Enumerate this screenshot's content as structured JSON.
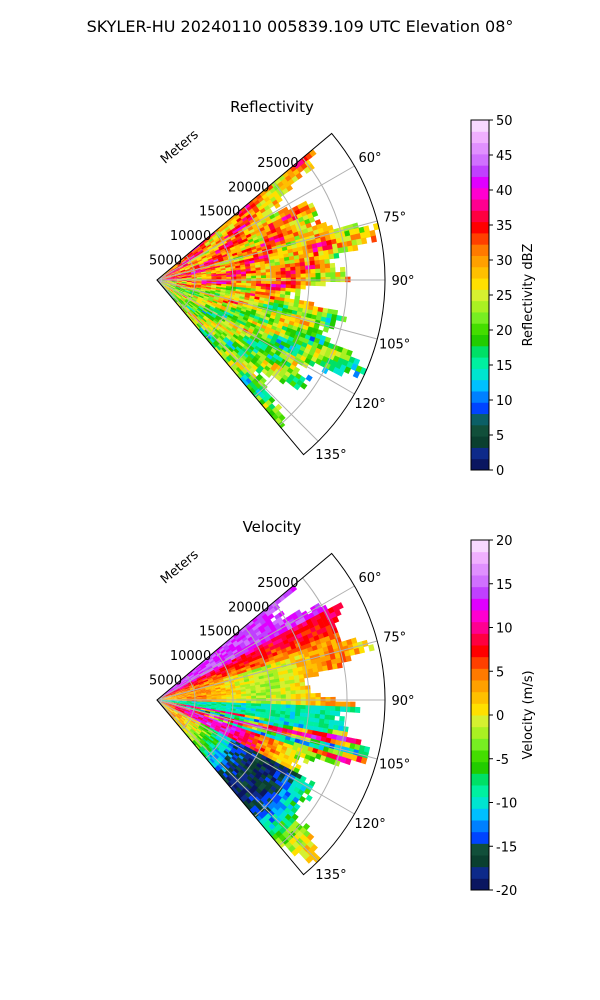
{
  "figure": {
    "suptitle": "SKYLER-HU  20240110  005839.109 UTC Elevation 08°"
  },
  "chart_data": [
    {
      "type": "heatmap",
      "projection": "polar-sector",
      "title": "Reflectivity",
      "radial_axis_label": "Meters",
      "radial_ticks": [
        5000,
        10000,
        15000,
        20000,
        25000
      ],
      "radial_max": 30000,
      "azimuth_range_deg": [
        50,
        140
      ],
      "azimuth_ticks": [
        "60°",
        "75°",
        "90°",
        "105°",
        "120°",
        "135°"
      ],
      "grid": true,
      "colorbar": {
        "label": "Reflectivity dBZ",
        "range": [
          0,
          50
        ],
        "ticks": [
          0,
          5,
          10,
          15,
          20,
          25,
          30,
          35,
          40,
          45,
          50
        ],
        "colors": [
          "#0a1660",
          "#0d2a8a",
          "#0a3f2f",
          "#114f3a",
          "#0b5f66",
          "#0044ff",
          "#0080ff",
          "#00c0ff",
          "#00e5d0",
          "#00f0a0",
          "#00e066",
          "#22cc00",
          "#44dd00",
          "#77ee22",
          "#aaf022",
          "#d6f030",
          "#ffe000",
          "#ffc000",
          "#ffa000",
          "#ff7a00",
          "#ff4000",
          "#ff0000",
          "#ff0040",
          "#ff0090",
          "#ff00d0",
          "#e000ff",
          "#c040ff",
          "#d070ff",
          "#e090ff",
          "#f0b0ff",
          "#f8d8ff"
        ]
      },
      "field": "reflectivity"
    },
    {
      "type": "heatmap",
      "projection": "polar-sector",
      "title": "Velocity",
      "radial_axis_label": "Meters",
      "radial_ticks": [
        5000,
        10000,
        15000,
        20000,
        25000
      ],
      "radial_max": 30000,
      "azimuth_range_deg": [
        50,
        140
      ],
      "azimuth_ticks": [
        "60°",
        "75°",
        "90°",
        "105°",
        "120°",
        "135°"
      ],
      "grid": true,
      "colorbar": {
        "label": "Velocity (m/s)",
        "range": [
          -20,
          20
        ],
        "ticks": [
          -20,
          -15,
          -10,
          -5,
          0,
          5,
          10,
          15,
          20
        ],
        "colors": [
          "#0a1660",
          "#0d2a8a",
          "#0a3f2f",
          "#114f3a",
          "#0044ff",
          "#0080ff",
          "#00c0ff",
          "#00e5d0",
          "#00f0a0",
          "#00e066",
          "#22cc00",
          "#44dd00",
          "#77ee22",
          "#aaf022",
          "#d6f030",
          "#ffe000",
          "#ffc000",
          "#ffa000",
          "#ff7a00",
          "#ff4000",
          "#ff0000",
          "#ff0040",
          "#ff0090",
          "#ff00d0",
          "#e000ff",
          "#c040ff",
          "#d070ff",
          "#e090ff",
          "#f0b0ff",
          "#f8d8ff"
        ]
      },
      "field": "velocity"
    }
  ]
}
